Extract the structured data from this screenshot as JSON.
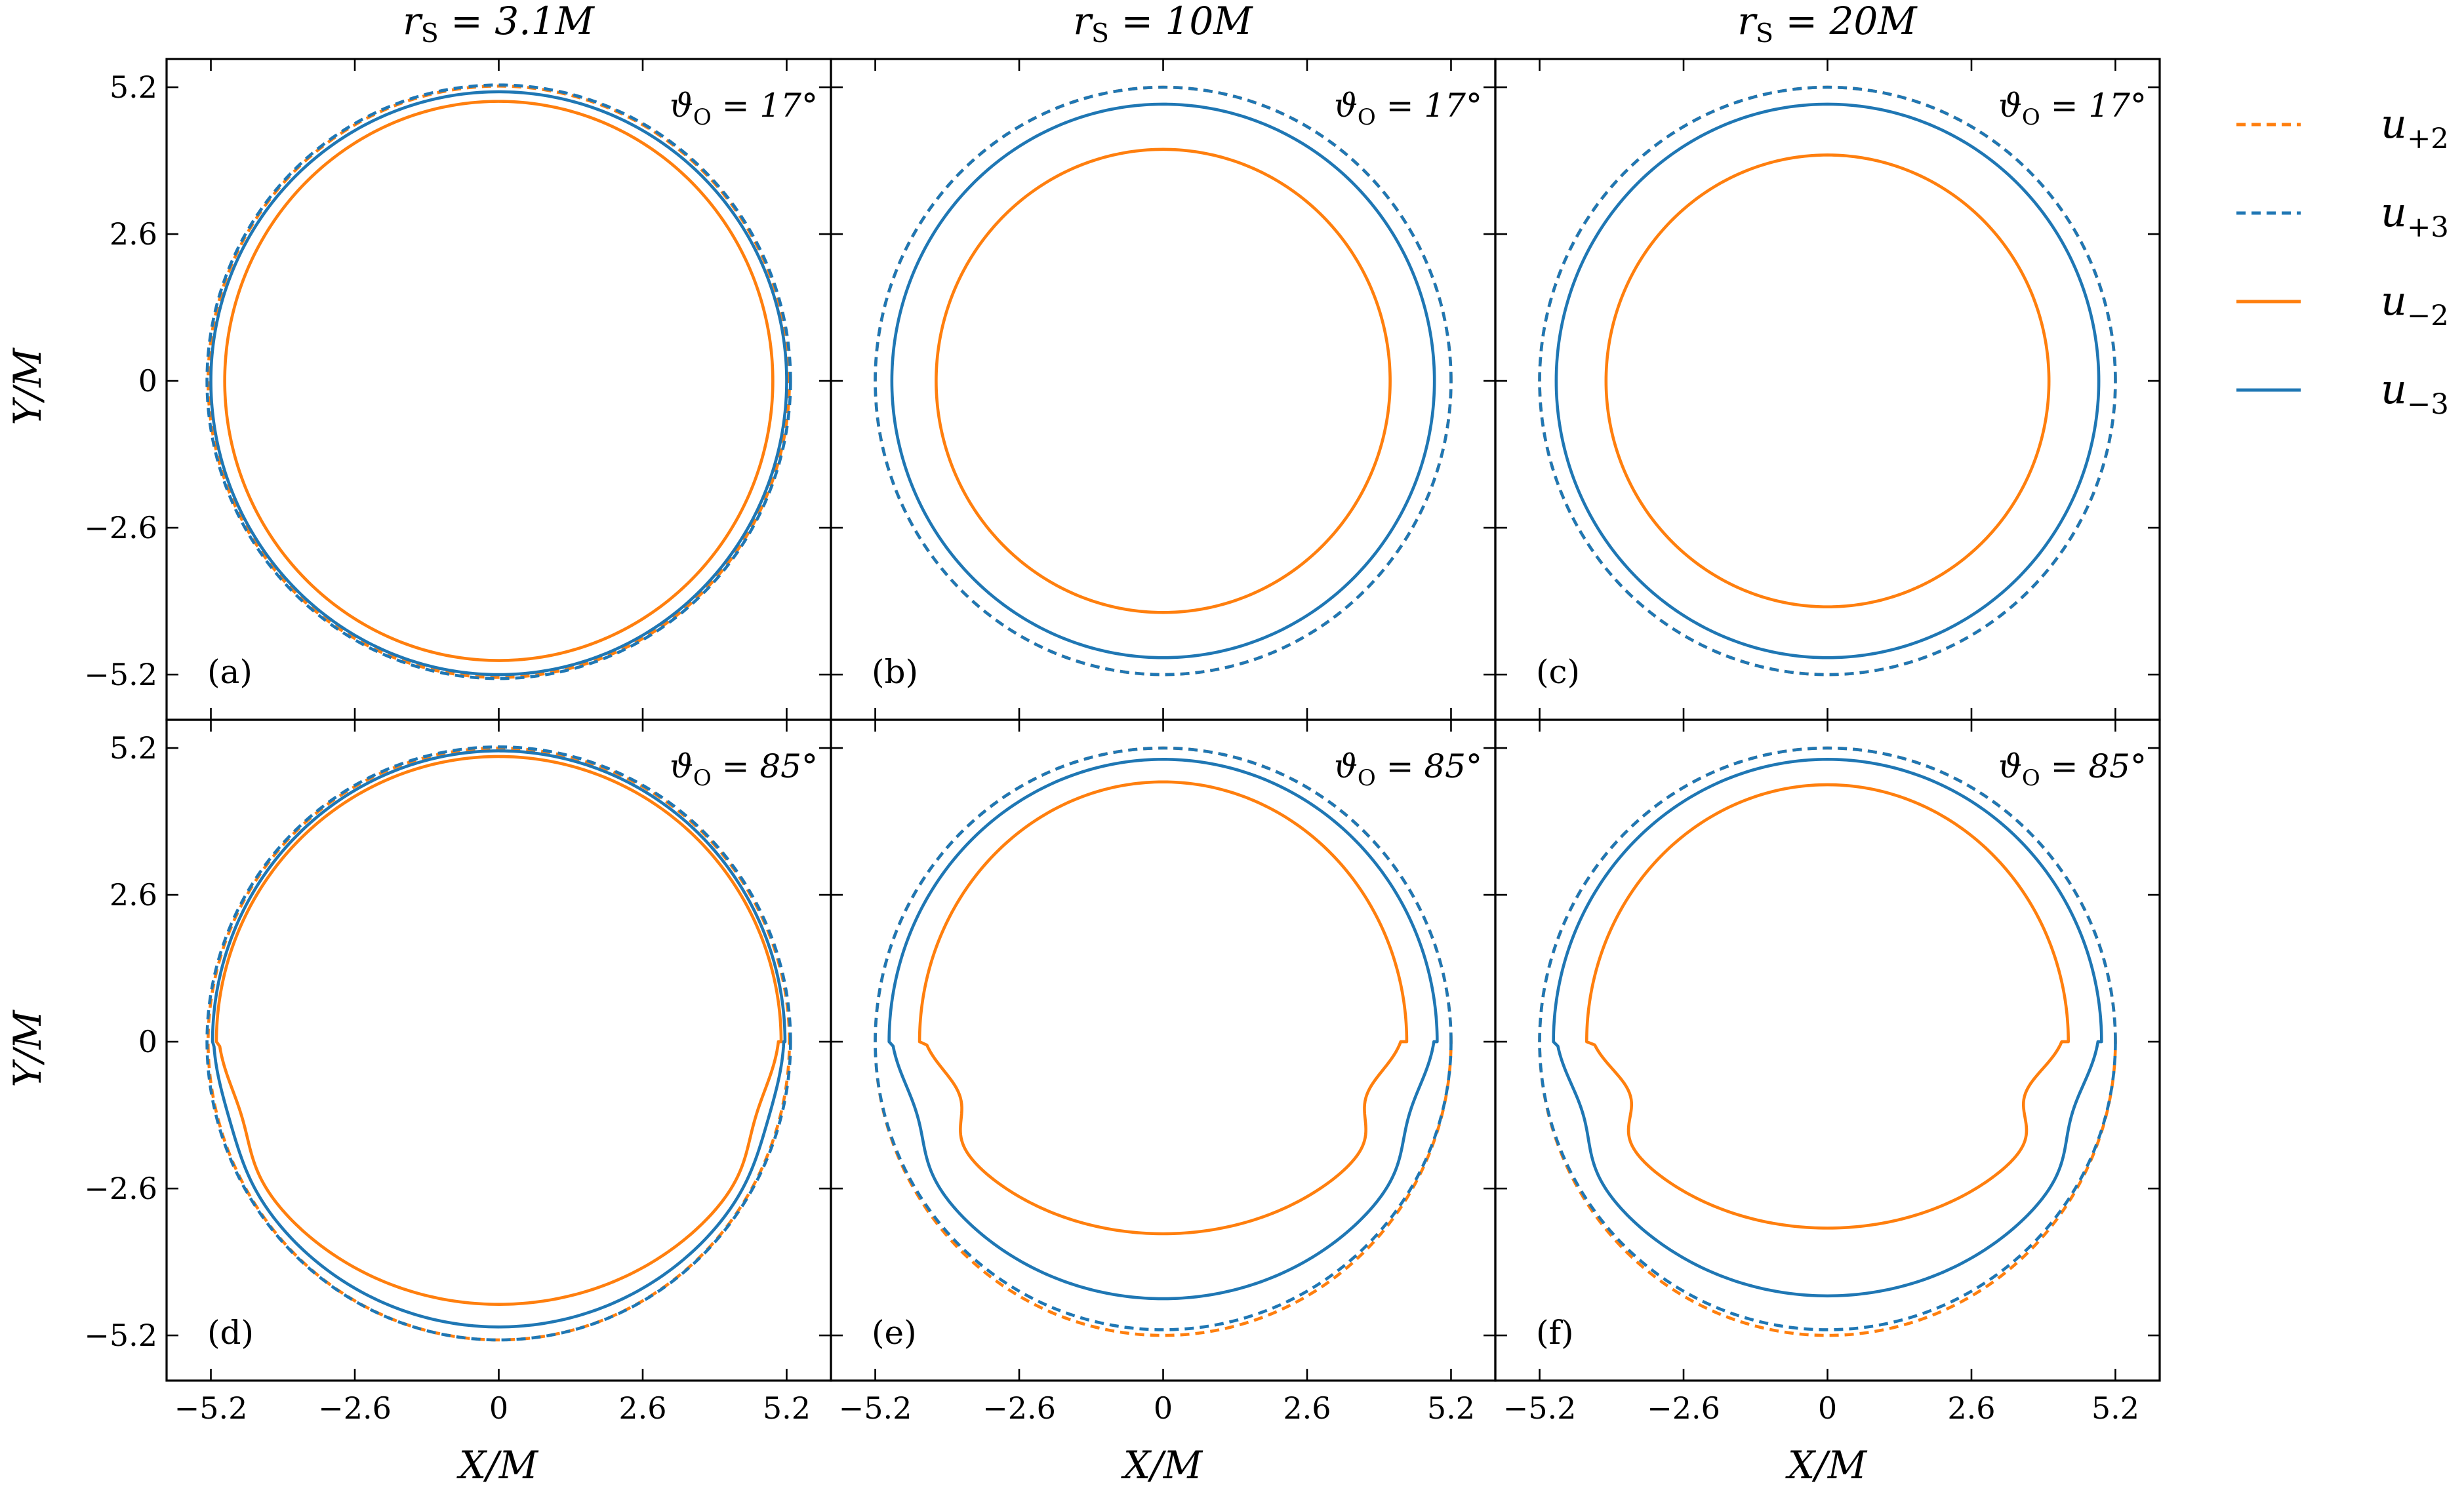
{
  "chart_data": {
    "type": "line",
    "shared": {
      "xlabel": "X/M",
      "ylabel": "Y/M",
      "xticks": [
        "−5.2",
        "−2.6",
        "0",
        "2.6",
        "5.2"
      ],
      "yticks": [
        "5.2",
        "2.6",
        "0",
        "−2.6",
        "−5.2"
      ],
      "xlim": [
        -6.0,
        6.0
      ],
      "ylim": [
        -6.0,
        5.7
      ],
      "grid": false,
      "legend_position": "right"
    },
    "column_titles": [
      "r_S = 3.1M",
      "r_S = 10M",
      "r_S = 20M"
    ],
    "row_annotations": [
      "ϑ_O = 17°",
      "ϑ_O = 85°"
    ],
    "legend": [
      {
        "label": "u+2",
        "color": "#ff7f0e",
        "style": "dashed"
      },
      {
        "label": "u+3",
        "color": "#1f77b4",
        "style": "dashed"
      },
      {
        "label": "u−2",
        "color": "#ff7f0e",
        "style": "solid"
      },
      {
        "label": "u−3",
        "color": "#1f77b4",
        "style": "solid"
      }
    ],
    "panels": [
      {
        "label": "(a)",
        "r_S": "3.1M",
        "theta_O": "17°",
        "series": [
          {
            "name": "u+2",
            "cx": 0,
            "cy": 0,
            "rx": 5.25,
            "ry_top": 5.22,
            "ry_bot": 5.25,
            "dip": 0
          },
          {
            "name": "u+3",
            "cx": 0,
            "cy": 0,
            "rx": 5.27,
            "ry_top": 5.24,
            "ry_bot": 5.27,
            "dip": 0
          },
          {
            "name": "u−2",
            "cx": 0,
            "cy": 0,
            "rx": 4.95,
            "ry_top": 4.95,
            "ry_bot": 4.95,
            "dip": 0
          },
          {
            "name": "u−3",
            "cx": 0,
            "cy": 0,
            "rx": 5.2,
            "ry_top": 5.12,
            "ry_bot": 5.2,
            "dip": 0
          }
        ]
      },
      {
        "label": "(b)",
        "r_S": "10M",
        "theta_O": "17°",
        "series": [
          {
            "name": "u+2",
            "cx": 0,
            "cy": 0,
            "rx": 5.2,
            "ry_top": 5.2,
            "ry_bot": 5.2,
            "dip": 0
          },
          {
            "name": "u+3",
            "cx": 0,
            "cy": 0,
            "rx": 5.2,
            "ry_top": 5.2,
            "ry_bot": 5.2,
            "dip": 0
          },
          {
            "name": "u−2",
            "cx": 0,
            "cy": 0,
            "rx": 4.1,
            "ry_top": 4.1,
            "ry_bot": 4.1,
            "dip": 0
          },
          {
            "name": "u−3",
            "cx": 0,
            "cy": 0,
            "rx": 4.9,
            "ry_top": 4.9,
            "ry_bot": 4.9,
            "dip": 0
          }
        ]
      },
      {
        "label": "(c)",
        "r_S": "20M",
        "theta_O": "17°",
        "series": [
          {
            "name": "u+2",
            "cx": 0,
            "cy": 0,
            "rx": 5.2,
            "ry_top": 5.2,
            "ry_bot": 5.2,
            "dip": 0
          },
          {
            "name": "u+3",
            "cx": 0,
            "cy": 0,
            "rx": 5.2,
            "ry_top": 5.2,
            "ry_bot": 5.2,
            "dip": 0
          },
          {
            "name": "u−2",
            "cx": 0,
            "cy": 0,
            "rx": 4.0,
            "ry_top": 4.0,
            "ry_bot": 4.0,
            "dip": 0
          },
          {
            "name": "u−3",
            "cx": 0,
            "cy": 0,
            "rx": 4.9,
            "ry_top": 4.9,
            "ry_bot": 4.9,
            "dip": 0
          }
        ]
      },
      {
        "label": "(d)",
        "r_S": "3.1M",
        "theta_O": "85°",
        "series": [
          {
            "name": "u+2",
            "cx": 0,
            "cy": 0,
            "rx": 5.25,
            "ry_top": 5.2,
            "ry_bot": 5.28,
            "dip": 0
          },
          {
            "name": "u+3",
            "cx": 0,
            "cy": 0,
            "rx": 5.27,
            "ry_top": 5.22,
            "ry_bot": 5.28,
            "dip": 0
          },
          {
            "name": "u−2",
            "cx": 0,
            "cy": 0,
            "rx": 5.1,
            "ry_top": 5.05,
            "ry_bot": 4.65,
            "dip": 0.45
          },
          {
            "name": "u−3",
            "cx": 0,
            "cy": 0,
            "rx": 5.17,
            "ry_top": 5.15,
            "ry_bot": 5.05,
            "dip": 0.2
          }
        ]
      },
      {
        "label": "(e)",
        "r_S": "10M",
        "theta_O": "85°",
        "series": [
          {
            "name": "u+2",
            "cx": 0,
            "cy": 0,
            "rx": 5.2,
            "ry_top": 5.2,
            "ry_bot": 5.2,
            "dip": 0
          },
          {
            "name": "u+3",
            "cx": 0,
            "cy": 0,
            "rx": 5.2,
            "ry_top": 5.2,
            "ry_bot": 5.1,
            "dip": 0
          },
          {
            "name": "u−2",
            "cx": 0,
            "cy": 0,
            "rx": 4.4,
            "ry_top": 4.6,
            "ry_bot": 3.4,
            "dip": 1.0
          },
          {
            "name": "u−3",
            "cx": 0,
            "cy": 0,
            "rx": 4.95,
            "ry_top": 5.0,
            "ry_bot": 4.55,
            "dip": 0.55
          }
        ]
      },
      {
        "label": "(f)",
        "r_S": "20M",
        "theta_O": "85°",
        "series": [
          {
            "name": "u+2",
            "cx": 0,
            "cy": 0,
            "rx": 5.2,
            "ry_top": 5.2,
            "ry_bot": 5.2,
            "dip": 0
          },
          {
            "name": "u+3",
            "cx": 0,
            "cy": 0,
            "rx": 5.2,
            "ry_top": 5.2,
            "ry_bot": 5.1,
            "dip": 0
          },
          {
            "name": "u−2",
            "cx": 0,
            "cy": 0,
            "rx": 4.35,
            "ry_top": 4.55,
            "ry_bot": 3.3,
            "dip": 1.1
          },
          {
            "name": "u−3",
            "cx": 0,
            "cy": 0,
            "rx": 4.95,
            "ry_top": 5.0,
            "ry_bot": 4.5,
            "dip": 0.6
          }
        ]
      }
    ]
  }
}
